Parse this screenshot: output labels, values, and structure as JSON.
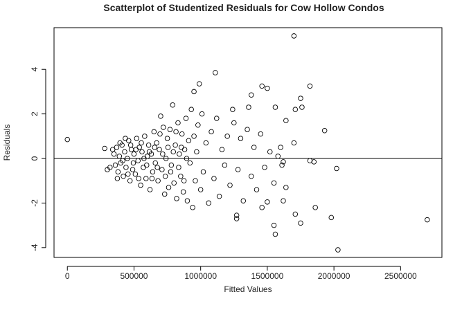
{
  "chart_data": {
    "type": "scatter",
    "title": "Scatterplot of Studentized Residuals for Cow Hollow Condos",
    "x_label": "Fitted Values",
    "y_label": "Residuals",
    "xlim": [
      -100000,
      2810000
    ],
    "ylim": [
      -4.44,
      5.87
    ],
    "xticks": [
      0,
      500000,
      1000000,
      1500000,
      2000000,
      2500000
    ],
    "yticks": [
      -4,
      -2,
      0,
      2,
      4
    ],
    "color": "#000000",
    "x": [
      0,
      1700000,
      1110000,
      2700000,
      2030000,
      1980000,
      2020000,
      1930000,
      1820000,
      1750000,
      1760000,
      1710000,
      1460000,
      1500000,
      1560000,
      1640000,
      1700000,
      1850000,
      1820000,
      1860000,
      1750000,
      1710000,
      1550000,
      1560000,
      1460000,
      1500000,
      1270000,
      1270000,
      990000,
      950000,
      1380000,
      1360000,
      1240000,
      1620000,
      1610000,
      1640000,
      1600000,
      280000,
      300000,
      350000,
      360000,
      370000,
      380000,
      390000,
      400000,
      410000,
      420000,
      430000,
      440000,
      450000,
      460000,
      470000,
      480000,
      490000,
      500000,
      510000,
      520000,
      530000,
      540000,
      550000,
      560000,
      570000,
      580000,
      590000,
      600000,
      610000,
      620000,
      630000,
      640000,
      650000,
      660000,
      670000,
      680000,
      690000,
      700000,
      710000,
      720000,
      730000,
      740000,
      750000,
      760000,
      770000,
      780000,
      790000,
      800000,
      810000,
      820000,
      830000,
      840000,
      850000,
      860000,
      870000,
      880000,
      890000,
      900000,
      910000,
      920000,
      930000,
      940000,
      950000,
      960000,
      970000,
      980000,
      1000000,
      1010000,
      1020000,
      1040000,
      1060000,
      1080000,
      1100000,
      1120000,
      1140000,
      1160000,
      1180000,
      1200000,
      1220000,
      1250000,
      1280000,
      1300000,
      1320000,
      1350000,
      1380000,
      1400000,
      1420000,
      1450000,
      1480000,
      1520000,
      1550000,
      1580000,
      1620000,
      320000,
      340000,
      375000,
      395000,
      415000,
      435000,
      455000,
      475000,
      495000,
      515000,
      535000,
      555000,
      575000,
      595000,
      615000,
      635000,
      655000,
      675000,
      695000,
      715000,
      735000,
      755000,
      775000,
      795000,
      815000,
      835000,
      855000,
      875000,
      895000
    ],
    "y": [
      0.85,
      5.5,
      3.85,
      -2.75,
      -4.1,
      -2.65,
      -0.45,
      1.25,
      3.25,
      2.7,
      2.3,
      2.2,
      3.25,
      3.15,
      2.3,
      1.7,
      0.7,
      -0.15,
      -0.1,
      -2.2,
      -2.9,
      -2.5,
      -3.0,
      -3.4,
      -2.2,
      -1.95,
      -2.55,
      -2.7,
      3.35,
      3.0,
      2.85,
      2.3,
      2.2,
      -0.15,
      -0.3,
      -1.3,
      0.5,
      0.45,
      -0.5,
      0.2,
      -0.3,
      0.5,
      -0.6,
      0.1,
      -0.2,
      0.6,
      -0.8,
      0.3,
      -0.4,
      0.0,
      0.8,
      -1.0,
      0.4,
      -0.5,
      0.2,
      -0.7,
      0.9,
      -0.1,
      0.5,
      -1.2,
      0.3,
      -0.4,
      1.0,
      -0.9,
      0.1,
      0.6,
      -1.4,
      0.2,
      -0.6,
      1.2,
      -0.2,
      0.7,
      -1.0,
      0.4,
      1.9,
      -0.5,
      1.4,
      -1.6,
      0.0,
      0.9,
      -1.3,
      1.3,
      -0.3,
      2.4,
      -1.1,
      0.6,
      -1.8,
      1.6,
      0.2,
      -0.8,
      1.1,
      -1.5,
      0.4,
      1.8,
      -1.9,
      0.8,
      -0.2,
      2.2,
      -2.2,
      1.0,
      -1.0,
      0.3,
      1.5,
      -1.4,
      2.0,
      -0.6,
      0.7,
      -2.0,
      1.2,
      -0.9,
      1.8,
      -1.7,
      0.4,
      -0.3,
      1.0,
      -1.2,
      1.6,
      -0.5,
      0.9,
      -1.9,
      1.3,
      -0.8,
      0.5,
      -1.4,
      1.1,
      -0.4,
      0.3,
      -1.1,
      0.1,
      -1.9,
      -0.4,
      0.4,
      -0.9,
      0.7,
      -0.1,
      0.9,
      -0.7,
      0.6,
      -0.2,
      0.4,
      -0.9,
      0.7,
      0.0,
      -0.3,
      0.3,
      -0.9,
      0.5,
      -0.4,
      1.1,
      0.2,
      -0.8,
      0.5,
      -0.6,
      0.3,
      1.2,
      -0.4,
      0.5,
      -1.0,
      0.0
    ]
  }
}
